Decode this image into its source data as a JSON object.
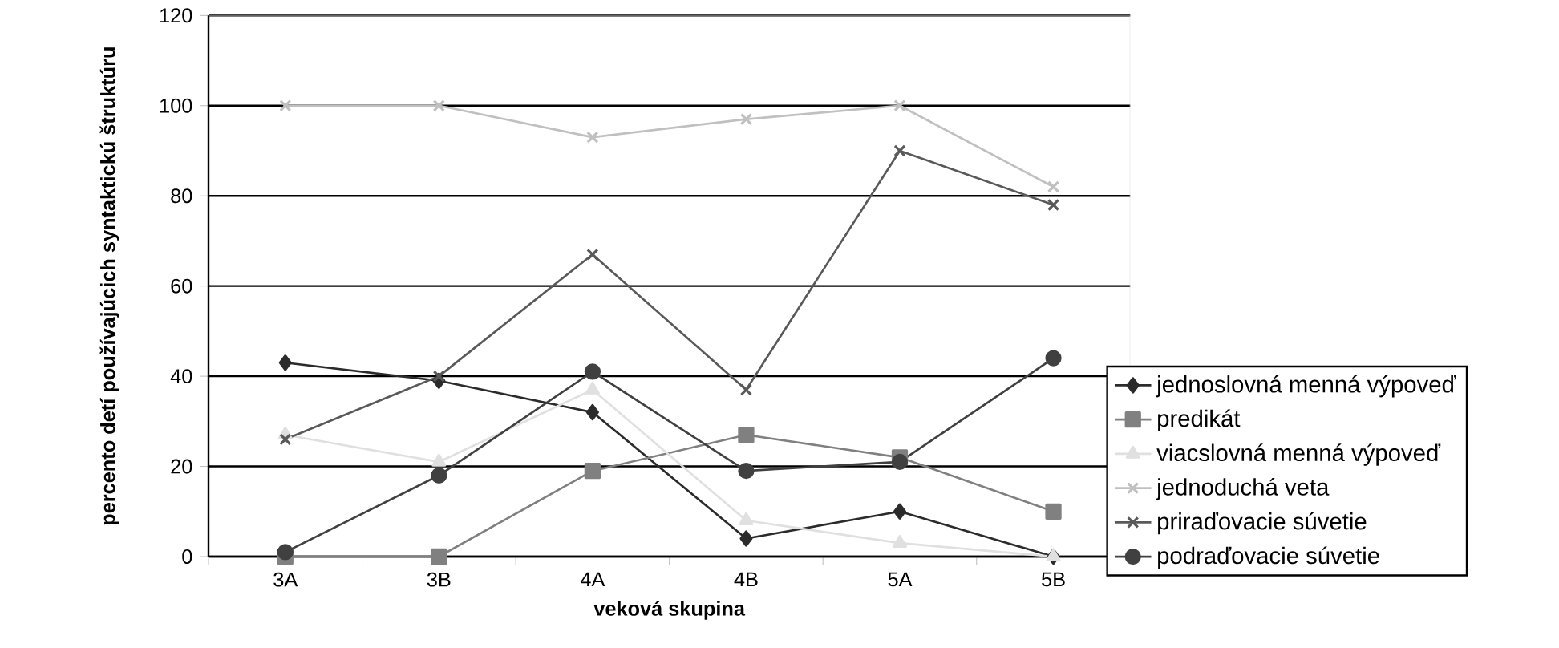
{
  "chart_data": {
    "type": "line",
    "xlabel": "veková skupina",
    "ylabel": "percento detí používajúcich syntaktickú štruktúru",
    "categories": [
      "3A",
      "3B",
      "4A",
      "4B",
      "5A",
      "5B"
    ],
    "ylim": [
      0,
      120
    ],
    "yticks": [
      0,
      20,
      40,
      60,
      80,
      100,
      120
    ],
    "grid": "y",
    "legend": "bottom right",
    "series": [
      {
        "name": "jednoslovná menná výpoveď",
        "color": "#2b2b2b",
        "marker": "diamond",
        "values": [
          43,
          39,
          32,
          4,
          10,
          0
        ]
      },
      {
        "name": "predikát",
        "color": "#808080",
        "marker": "square",
        "values": [
          0,
          0,
          19,
          27,
          22,
          10
        ]
      },
      {
        "name": "viacslovná menná výpoveď",
        "color": "#e0e0e0",
        "marker": "triangle",
        "values": [
          27,
          21,
          37,
          8,
          3,
          0
        ]
      },
      {
        "name": "jednoduchá veta",
        "color": "#c0c0c0",
        "marker": "cross",
        "values": [
          100,
          100,
          93,
          97,
          100,
          82
        ]
      },
      {
        "name": "priraďovacie súvetie",
        "color": "#595959",
        "marker": "cross",
        "values": [
          26,
          40,
          67,
          37,
          90,
          78
        ]
      },
      {
        "name": "podraďovacie súvetie",
        "color": "#404040",
        "marker": "circle",
        "values": [
          1,
          18,
          41,
          19,
          21,
          44
        ]
      }
    ]
  }
}
